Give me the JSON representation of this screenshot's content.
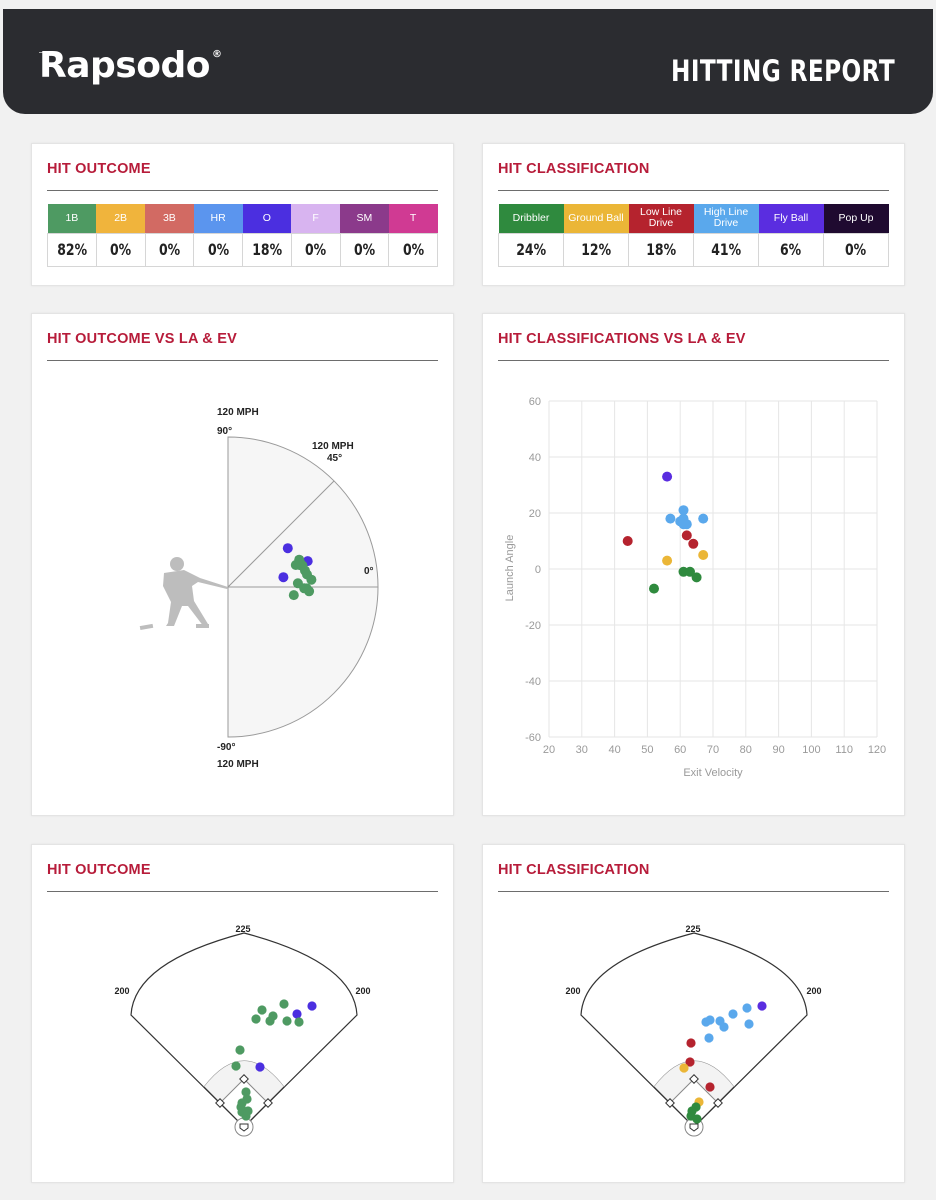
{
  "header": {
    "logo": "Rapsodo",
    "logo_mark": "®",
    "title": "HITTING REPORT"
  },
  "colors": {
    "accent": "#b71c3a",
    "outcome": {
      "1B": "#4e9a62",
      "2B": "#f0b43c",
      "3B": "#d26a63",
      "HR": "#5b95ee",
      "O": "#4b2fe0",
      "F": "#d8b4f0",
      "SM": "#8b3a8b",
      "T": "#d03a93"
    },
    "classification": {
      "Dribbler": "#2f8a3e",
      "Ground Ball": "#ebb637",
      "Low Line Drive": "#b5232e",
      "High Line Drive": "#5aa8ec",
      "Fly Ball": "#5a2de0",
      "Pop Up": "#1f0a30"
    }
  },
  "hit_outcome_table": {
    "title": "HIT OUTCOME",
    "columns": [
      {
        "label": "1B",
        "value": "82%"
      },
      {
        "label": "2B",
        "value": "0%"
      },
      {
        "label": "3B",
        "value": "0%"
      },
      {
        "label": "HR",
        "value": "0%"
      },
      {
        "label": "O",
        "value": "18%"
      },
      {
        "label": "F",
        "value": "0%"
      },
      {
        "label": "SM",
        "value": "0%"
      },
      {
        "label": "T",
        "value": "0%"
      }
    ]
  },
  "hit_classification_table": {
    "title": "HIT CLASSIFICATION",
    "columns": [
      {
        "label": "Dribbler",
        "value": "24%"
      },
      {
        "label": "Ground Ball",
        "value": "12%"
      },
      {
        "label": "Low Line Drive",
        "value": "18%"
      },
      {
        "label": "High Line Drive",
        "value": "41%"
      },
      {
        "label": "Fly Ball",
        "value": "6%"
      },
      {
        "label": "Pop Up",
        "value": "0%"
      }
    ]
  },
  "chart_data": [
    {
      "type": "scatter",
      "id": "outcome_polar",
      "title": "HIT OUTCOME VS LA & EV",
      "coordinate": "polar",
      "max_speed_label": "120 MPH",
      "max_speed": 120,
      "angle_labels": {
        "top": "90°",
        "mid": "45°",
        "zero": "0°",
        "bottom": "-90°"
      },
      "speed_labels": {
        "top": "120 MPH",
        "mid": "120 MPH",
        "bottom": "120 MPH"
      },
      "points": [
        {
          "ev": 57,
          "la": 33,
          "outcome": "O"
        },
        {
          "ev": 67,
          "la": 18,
          "outcome": "O"
        },
        {
          "ev": 45,
          "la": 10,
          "outcome": "O"
        },
        {
          "ev": 61,
          "la": 21,
          "outcome": "1B"
        },
        {
          "ev": 61,
          "la": 18,
          "outcome": "1B"
        },
        {
          "ev": 60,
          "la": 17,
          "outcome": "1B"
        },
        {
          "ev": 62,
          "la": 16,
          "outcome": "1B"
        },
        {
          "ev": 57,
          "la": 18,
          "outcome": "1B"
        },
        {
          "ev": 63,
          "la": 12,
          "outcome": "1B"
        },
        {
          "ev": 64,
          "la": 9,
          "outcome": "1B"
        },
        {
          "ev": 56,
          "la": 3,
          "outcome": "1B"
        },
        {
          "ev": 67,
          "la": 5,
          "outcome": "1B"
        },
        {
          "ev": 61,
          "la": -1,
          "outcome": "1B"
        },
        {
          "ev": 63,
          "la": -1,
          "outcome": "1B"
        },
        {
          "ev": 65,
          "la": -3,
          "outcome": "1B"
        },
        {
          "ev": 53,
          "la": -7,
          "outcome": "1B"
        }
      ]
    },
    {
      "type": "scatter",
      "id": "classification_la_ev",
      "title": "HIT CLASSIFICATIONS VS LA & EV",
      "xlabel": "Exit Velocity",
      "ylabel": "Launch Angle",
      "xlim": [
        20,
        120
      ],
      "ylim": [
        -60,
        60
      ],
      "xticks": [
        20,
        30,
        40,
        50,
        60,
        70,
        80,
        90,
        100,
        110,
        120
      ],
      "yticks": [
        60,
        40,
        20,
        0,
        -20,
        -40,
        -60
      ],
      "grid": true,
      "points": [
        {
          "ev": 56,
          "la": 33,
          "class": "Fly Ball"
        },
        {
          "ev": 61,
          "la": 21,
          "class": "High Line Drive"
        },
        {
          "ev": 61,
          "la": 18,
          "class": "High Line Drive"
        },
        {
          "ev": 57,
          "la": 18,
          "class": "High Line Drive"
        },
        {
          "ev": 67,
          "la": 18,
          "class": "High Line Drive"
        },
        {
          "ev": 60,
          "la": 17,
          "class": "High Line Drive"
        },
        {
          "ev": 62,
          "la": 16,
          "class": "High Line Drive"
        },
        {
          "ev": 61,
          "la": 16,
          "class": "High Line Drive"
        },
        {
          "ev": 62,
          "la": 12,
          "class": "Low Line Drive"
        },
        {
          "ev": 64,
          "la": 9,
          "class": "Low Line Drive"
        },
        {
          "ev": 44,
          "la": 10,
          "class": "Low Line Drive"
        },
        {
          "ev": 56,
          "la": 3,
          "class": "Ground Ball"
        },
        {
          "ev": 67,
          "la": 5,
          "class": "Ground Ball"
        },
        {
          "ev": 61,
          "la": -1,
          "class": "Dribbler"
        },
        {
          "ev": 63,
          "la": -1,
          "class": "Dribbler"
        },
        {
          "ev": 65,
          "la": -3,
          "class": "Dribbler"
        },
        {
          "ev": 52,
          "la": -7,
          "class": "Dribbler"
        }
      ]
    },
    {
      "type": "scatter",
      "id": "outcome_spray",
      "title": "HIT OUTCOME",
      "field_labels": {
        "center": "225",
        "left": "200",
        "right": "200"
      },
      "points": [
        {
          "x": 53,
          "y": 75,
          "outcome": "O"
        },
        {
          "x": 68,
          "y": 67,
          "outcome": "O"
        },
        {
          "x": 16,
          "y": 128,
          "outcome": "O"
        },
        {
          "x": 40,
          "y": 65,
          "outcome": "1B"
        },
        {
          "x": 43,
          "y": 82,
          "outcome": "1B"
        },
        {
          "x": 55,
          "y": 83,
          "outcome": "1B"
        },
        {
          "x": 18,
          "y": 71,
          "outcome": "1B"
        },
        {
          "x": 26,
          "y": 82,
          "outcome": "1B"
        },
        {
          "x": 12,
          "y": 80,
          "outcome": "1B"
        },
        {
          "x": 29,
          "y": 77,
          "outcome": "1B"
        },
        {
          "x": -4,
          "y": 111,
          "outcome": "1B"
        },
        {
          "x": -8,
          "y": 127,
          "outcome": "1B"
        },
        {
          "x": 2,
          "y": 153,
          "outcome": "1B"
        },
        {
          "x": 3,
          "y": 160,
          "outcome": "1B"
        },
        {
          "x": -2,
          "y": 164,
          "outcome": "1B"
        },
        {
          "x": -3,
          "y": 168,
          "outcome": "1B"
        },
        {
          "x": -2,
          "y": 173,
          "outcome": "1B"
        },
        {
          "x": 2,
          "y": 177,
          "outcome": "1B"
        },
        {
          "x": 4,
          "y": 172,
          "outcome": "1B"
        }
      ]
    },
    {
      "type": "scatter",
      "id": "classification_spray",
      "title": "HIT CLASSIFICATION",
      "field_labels": {
        "center": "225",
        "left": "200",
        "right": "200"
      },
      "points": [
        {
          "x": 53,
          "y": 69,
          "class": "High Line Drive"
        },
        {
          "x": 68,
          "y": 67,
          "class": "Fly Ball"
        },
        {
          "x": 39,
          "y": 75,
          "class": "High Line Drive"
        },
        {
          "x": 55,
          "y": 85,
          "class": "High Line Drive"
        },
        {
          "x": 16,
          "y": 81,
          "class": "High Line Drive"
        },
        {
          "x": 26,
          "y": 82,
          "class": "High Line Drive"
        },
        {
          "x": 12,
          "y": 83,
          "class": "High Line Drive"
        },
        {
          "x": 30,
          "y": 88,
          "class": "High Line Drive"
        },
        {
          "x": 15,
          "y": 99,
          "class": "High Line Drive"
        },
        {
          "x": -3,
          "y": 104,
          "class": "Low Line Drive"
        },
        {
          "x": -4,
          "y": 123,
          "class": "Low Line Drive"
        },
        {
          "x": 16,
          "y": 148,
          "class": "Low Line Drive"
        },
        {
          "x": -10,
          "y": 129,
          "class": "Ground Ball"
        },
        {
          "x": 5,
          "y": 163,
          "class": "Ground Ball"
        },
        {
          "x": 2,
          "y": 168,
          "class": "Dribbler"
        },
        {
          "x": -2,
          "y": 172,
          "class": "Dribbler"
        },
        {
          "x": -3,
          "y": 177,
          "class": "Dribbler"
        },
        {
          "x": 3,
          "y": 180,
          "class": "Dribbler"
        }
      ]
    }
  ]
}
